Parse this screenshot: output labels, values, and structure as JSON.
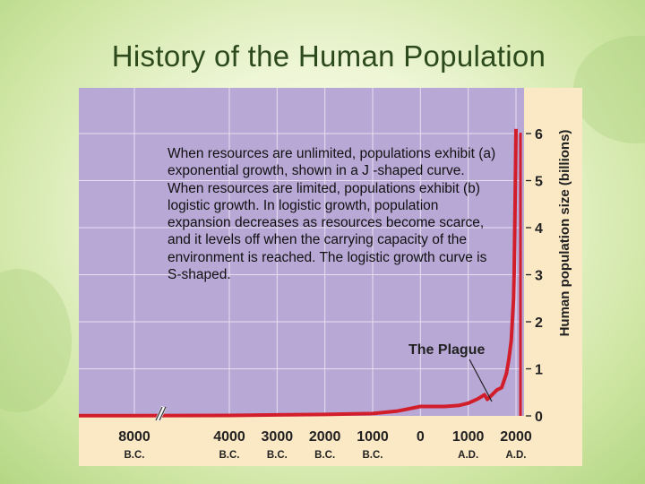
{
  "slide": {
    "title": "History of the Human Population",
    "body": "When resources are unlimited, populations exhibit (a) exponential growth, shown in a J -shaped curve. When resources are limited, populations exhibit (b) logistic growth. In logistic growth, population expansion decreases as resources become scarce, and it levels off when the carrying capacity of the environment is reached. The logistic growth curve is S-shaped."
  },
  "colors": {
    "plot_background": "#b8a8d6",
    "axis_band": "#fbe8c5",
    "curve": "#d21e2b",
    "grid": "#e6e0f0",
    "title": "#2c4a1c"
  },
  "chart_data": {
    "type": "line",
    "title": "",
    "xlabel": "",
    "ylabel": "Human population size (billions)",
    "y_axis_position": "right",
    "ylim": [
      0,
      6
    ],
    "yticks": [
      0,
      1,
      2,
      3,
      4,
      5,
      6
    ],
    "x_axis_break": "between 8000 B.C. and 4000 B.C.",
    "xticks": [
      {
        "x": -8000,
        "line1": "8000",
        "line2": "B.C."
      },
      {
        "x": -4000,
        "line1": "4000",
        "line2": "B.C."
      },
      {
        "x": -3000,
        "line1": "3000",
        "line2": "B.C."
      },
      {
        "x": -2000,
        "line1": "2000",
        "line2": "B.C."
      },
      {
        "x": -1000,
        "line1": "1000",
        "line2": "B.C."
      },
      {
        "x": 0,
        "line1": "0",
        "line2": ""
      },
      {
        "x": 1000,
        "line1": "1000",
        "line2": "A.D."
      },
      {
        "x": 2000,
        "line1": "2000",
        "line2": "A.D."
      }
    ],
    "series": [
      {
        "name": "",
        "x": [
          -8000,
          -4000,
          -3000,
          -2000,
          -1000,
          -500,
          0,
          500,
          800,
          1000,
          1200,
          1340,
          1400,
          1500,
          1600,
          1700,
          1800,
          1850,
          1900,
          1950,
          1960,
          1970,
          1980,
          1990,
          2000
        ],
        "y": [
          0.005,
          0.01,
          0.02,
          0.03,
          0.05,
          0.1,
          0.2,
          0.2,
          0.22,
          0.27,
          0.36,
          0.45,
          0.35,
          0.45,
          0.55,
          0.6,
          0.9,
          1.2,
          1.6,
          2.5,
          3.0,
          3.7,
          4.4,
          5.3,
          6.1
        ]
      }
    ],
    "annotations": [
      {
        "text": "The Plague",
        "x": 1350,
        "y": 0.35
      }
    ]
  }
}
